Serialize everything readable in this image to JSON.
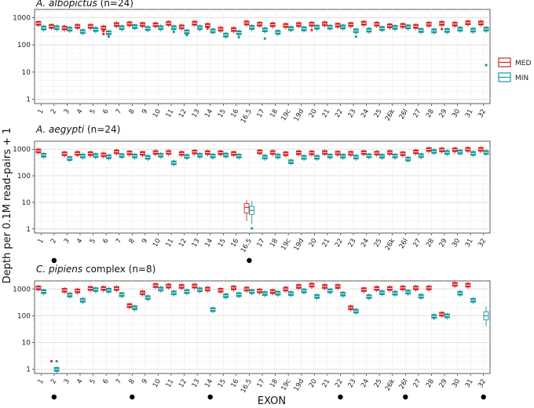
{
  "chart_data": {
    "type": "box",
    "ylabel": "Depth per 0.1M read-pairs + 1",
    "xlabel": "EXON",
    "scale": "log10",
    "ylim": [
      0.7,
      2000
    ],
    "yticks": [
      "1",
      "10",
      "100",
      "1000"
    ],
    "grid": true,
    "legend": {
      "placement": "right",
      "entries": [
        "MED",
        "MIN"
      ]
    },
    "colors": {
      "MED": "#d62728",
      "MIN": "#17989a",
      "grid": "#e2e2e2",
      "panel_bg": "#ffffff"
    },
    "categories": [
      "1",
      "2",
      "3",
      "4",
      "5",
      "6",
      "7",
      "8",
      "9",
      "10",
      "11",
      "12",
      "13",
      "14",
      "15",
      "16",
      "16.5",
      "17",
      "18",
      "19c",
      "19d",
      "20",
      "21",
      "22",
      "23",
      "24",
      "25",
      "26k",
      "26l",
      "27",
      "28",
      "29",
      "30",
      "31",
      "32"
    ],
    "panels": [
      {
        "title_italic": "A. albopictus",
        "title_rest": " (n=24)",
        "markers": [],
        "series": [
          {
            "name": "MED",
            "values": [
              620,
              480,
              420,
              480,
              480,
              420,
              560,
              600,
              560,
              550,
              620,
              460,
              630,
              520,
              380,
              370,
              640,
              580,
              550,
              520,
              560,
              580,
              600,
              530,
              560,
              630,
              580,
              500,
              520,
              480,
              580,
              620,
              580,
              650,
              640
            ],
            "outliers": [
              [
                5,
                320
              ],
              [
                5,
                250
              ],
              [
                13,
                400
              ],
              [
                21,
                350
              ],
              [
                31,
                380
              ]
            ]
          },
          {
            "name": "MIN",
            "values": [
              420,
              430,
              380,
              310,
              370,
              280,
              430,
              470,
              400,
              430,
              430,
              300,
              430,
              330,
              230,
              280,
              440,
              360,
              290,
              400,
              390,
              450,
              450,
              460,
              330,
              350,
              400,
              440,
              460,
              340,
              330,
              340,
              380,
              350,
              380
            ],
            "outliers": [
              [
                5,
                200
              ],
              [
                10,
                300
              ],
              [
                11,
                230
              ],
              [
                17,
                170
              ],
              [
                15,
                190
              ],
              [
                24,
                200
              ],
              [
                34,
                18
              ]
            ]
          }
        ]
      },
      {
        "title_italic": "A. aegypti",
        "title_rest": " (n=24)",
        "markers": [
          1,
          16
        ],
        "series": [
          {
            "name": "MED",
            "values": [
              870,
              null,
              680,
              700,
              690,
              620,
              800,
              730,
              700,
              760,
              760,
              700,
              790,
              750,
              740,
              700,
              6.5,
              800,
              760,
              680,
              740,
              730,
              760,
              720,
              710,
              750,
              720,
              760,
              680,
              800,
              980,
              950,
              960,
              1000,
              1000
            ],
            "box": [
              [
                1,
                5.5,
                3,
                9,
                1.2,
                15
              ],
              [
                16,
                6.5,
                4,
                9,
                2,
                12
              ]
            ],
            "outliers": []
          },
          {
            "name": "MIN",
            "values": [
              600,
              null,
              450,
              560,
              580,
              520,
              580,
              560,
              500,
              600,
              310,
              540,
              600,
              560,
              610,
              560,
              5.5,
              510,
              560,
              340,
              500,
              500,
              560,
              550,
              510,
              570,
              550,
              560,
              430,
              580,
              830,
              760,
              790,
              700,
              760
            ],
            "box": [
              [
                1,
                5,
                3,
                8,
                1.1,
                14
              ],
              [
                16,
                5,
                3.5,
                7,
                1.5,
                11
              ]
            ],
            "outliers": [
              [
                16,
                1.05
              ]
            ]
          }
        ]
      },
      {
        "title_italic": "C. pipiens",
        "title_rest": " complex (n=8)",
        "markers": [
          1,
          7,
          13,
          23,
          28,
          34
        ],
        "series": [
          {
            "name": "MED",
            "values": [
              1100,
              null,
              900,
              850,
              1050,
              1050,
              1050,
              240,
              720,
              1350,
              1300,
              1250,
              1300,
              1000,
              900,
              1100,
              1000,
              850,
              800,
              1000,
              1250,
              1400,
              1250,
              1250,
              200,
              950,
              1050,
              1050,
              1100,
              1100,
              1100,
              115,
              1500,
              1400,
              null
            ],
            "outliers": [
              [
                1,
                2
              ]
            ]
          },
          {
            "name": "MIN",
            "values": [
              800,
              1,
              600,
              380,
              950,
              900,
              620,
              200,
              480,
              1000,
              720,
              800,
              940,
              170,
              560,
              620,
              800,
              680,
              700,
              680,
              850,
              530,
              860,
              650,
              150,
              520,
              730,
              700,
              770,
              540,
              95,
              100,
              700,
              380,
              100
            ],
            "box": [
              [
                34,
                100,
                70,
                140,
                40,
                230
              ]
            ],
            "outliers": [
              [
                1,
                2
              ]
            ]
          }
        ]
      }
    ]
  }
}
